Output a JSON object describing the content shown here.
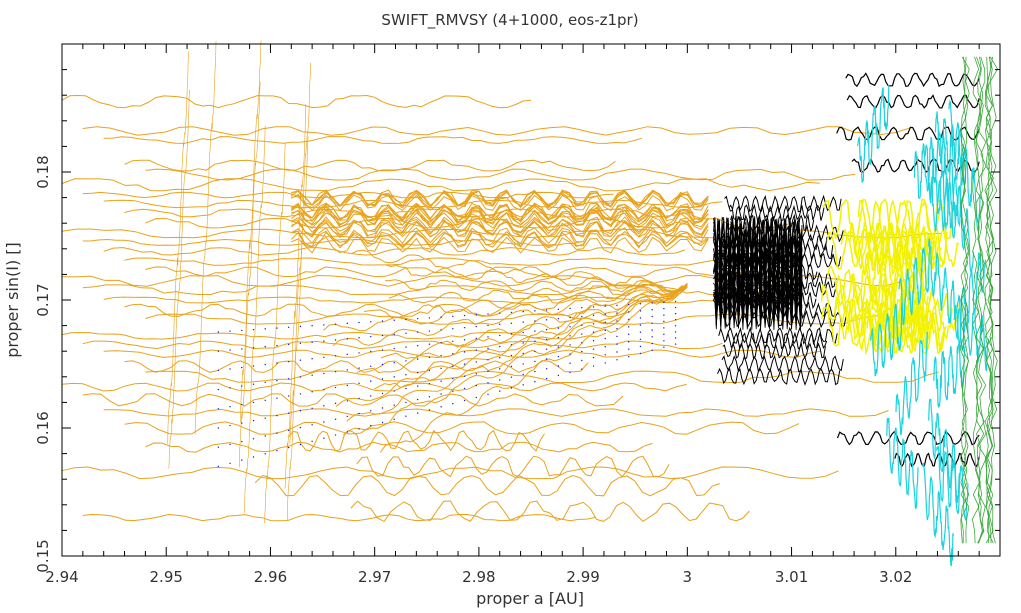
{
  "chart_data": {
    "type": "scatter",
    "title": "SWIFT_RMVSY (4+1000, eos-z1pr)",
    "xlabel": "proper a [AU]",
    "ylabel": "proper sin(I) []",
    "xlim": [
      2.94,
      3.03
    ],
    "ylim": [
      0.15,
      0.19
    ],
    "x_ticks": [
      {
        "value": 2.94,
        "label": "2.94"
      },
      {
        "value": 2.95,
        "label": "2.95"
      },
      {
        "value": 2.96,
        "label": "2.96"
      },
      {
        "value": 2.97,
        "label": "2.97"
      },
      {
        "value": 2.98,
        "label": "2.98"
      },
      {
        "value": 2.99,
        "label": "2.99"
      },
      {
        "value": 3.0,
        "label": "3"
      },
      {
        "value": 3.01,
        "label": "3.01"
      },
      {
        "value": 3.02,
        "label": "3.02"
      }
    ],
    "y_ticks": [
      {
        "value": 0.15,
        "label": "0.15"
      },
      {
        "value": 0.16,
        "label": "0.16"
      },
      {
        "value": 0.17,
        "label": "0.17"
      },
      {
        "value": 0.18,
        "label": "0.18"
      }
    ],
    "grid": false,
    "series_colors": {
      "orange": "#e8a21c",
      "black": "#000000",
      "yellow": "#f2f200",
      "cyan": "#19d3de",
      "blue": "#1a1ad0",
      "green": "#3da83d"
    },
    "series": [
      {
        "color": "orange",
        "style": "lines",
        "description_level": "horizontal tracks at many sin(I) levels with oscillations",
        "levels": [
          0.1855,
          0.1832,
          0.1825,
          0.1805,
          0.1798,
          0.179,
          0.1782,
          0.1775,
          0.1768,
          0.176,
          0.1752,
          0.1745,
          0.1738,
          0.173,
          0.1722,
          0.1715,
          0.1708,
          0.17,
          0.1692,
          0.1685,
          0.1672,
          0.1665,
          0.1658,
          0.1648,
          0.164,
          0.1632,
          0.1622,
          0.1612,
          0.16,
          0.1585,
          0.1565,
          0.153
        ]
      },
      {
        "color": "black",
        "style": "lines",
        "x_range": [
          3.0025,
          3.012
        ],
        "levels": [
          0.1775,
          0.1768,
          0.176,
          0.1752,
          0.1745,
          0.1738,
          0.173,
          0.1722,
          0.1715,
          0.1708,
          0.17,
          0.1692,
          0.1685,
          0.1672,
          0.1668,
          0.166,
          0.165,
          0.164
        ]
      },
      {
        "color": "yellow",
        "style": "lines",
        "x_range": [
          3.012,
          3.028
        ]
      },
      {
        "color": "cyan",
        "style": "lines",
        "x_range": [
          3.016,
          3.03
        ]
      },
      {
        "color": "blue",
        "style": "dots",
        "x_range": [
          2.952,
          3.01
        ]
      },
      {
        "color": "green",
        "style": "lines",
        "x_range": [
          3.026,
          3.03
        ]
      }
    ]
  }
}
